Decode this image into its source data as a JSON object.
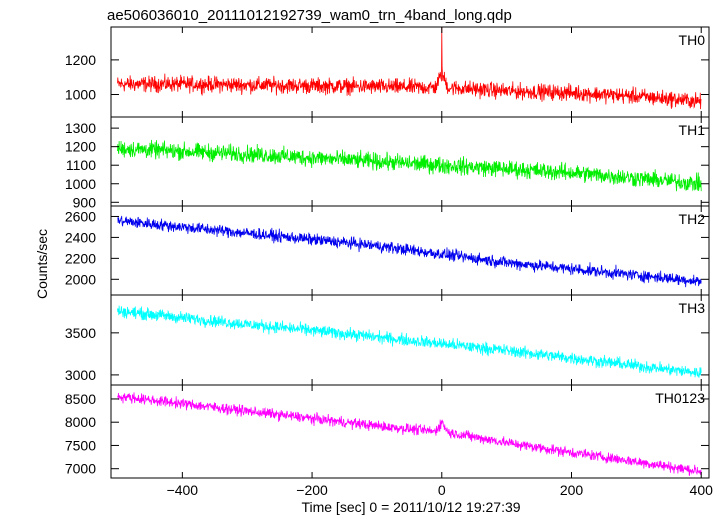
{
  "chart_data": {
    "type": "line",
    "title": "ae506036010_20111012192739_wam0_trn_4band_long.qdp",
    "xlabel": "Time [sec] 0 = 2011/10/12 19:27:39",
    "ylabel": "Counts/sec",
    "xlim": [
      -510,
      412
    ],
    "x_ticks": [
      -400,
      -200,
      0,
      200,
      400
    ],
    "x_tick_labels": [
      "−400",
      "−200",
      "0",
      "200",
      "400"
    ],
    "grid": false,
    "panels": [
      {
        "name": "TH0",
        "color": "#ff0000",
        "ylim": [
          870,
          1390
        ],
        "y_ticks": [
          1000,
          1200
        ],
        "x": [
          -500,
          -400,
          -300,
          -200,
          -100,
          -10,
          0,
          10,
          100,
          200,
          300,
          400
        ],
        "values": [
          1060,
          1060,
          1055,
          1050,
          1045,
          1040,
          1120,
          1040,
          1020,
          1010,
          990,
          960
        ],
        "noise": 45,
        "spike": {
          "x": 0,
          "value": 1390
        }
      },
      {
        "name": "TH1",
        "color": "#00ee00",
        "ylim": [
          880,
          1360
        ],
        "y_ticks": [
          900,
          1000,
          1100,
          1200,
          1300
        ],
        "x": [
          -500,
          -400,
          -300,
          -200,
          -100,
          0,
          100,
          200,
          300,
          400
        ],
        "values": [
          1190,
          1175,
          1160,
          1140,
          1120,
          1100,
          1080,
          1060,
          1030,
          1000
        ],
        "noise": 45
      },
      {
        "name": "TH2",
        "color": "#0000ee",
        "ylim": [
          1850,
          2700
        ],
        "y_ticks": [
          2000,
          2200,
          2400,
          2600
        ],
        "x": [
          -500,
          -400,
          -300,
          -200,
          -100,
          0,
          100,
          200,
          300,
          400
        ],
        "values": [
          2560,
          2500,
          2440,
          2380,
          2320,
          2240,
          2160,
          2100,
          2040,
          1980
        ],
        "noise": 55
      },
      {
        "name": "TH3",
        "color": "#00ffff",
        "ylim": [
          2880,
          3950
        ],
        "y_ticks": [
          3000,
          3500
        ],
        "x": [
          -500,
          -400,
          -300,
          -200,
          -100,
          0,
          100,
          200,
          300,
          400
        ],
        "values": [
          3760,
          3680,
          3600,
          3530,
          3450,
          3370,
          3290,
          3200,
          3110,
          3020
        ],
        "noise": 70
      },
      {
        "name": "TH0123",
        "color": "#ff00ff",
        "ylim": [
          6800,
          8800
        ],
        "y_ticks": [
          7000,
          7500,
          8000,
          8500
        ],
        "x": [
          -500,
          -400,
          -300,
          -200,
          -100,
          -10,
          0,
          10,
          100,
          200,
          300,
          400
        ],
        "values": [
          8560,
          8400,
          8240,
          8080,
          7920,
          7800,
          8000,
          7780,
          7560,
          7350,
          7150,
          6940
        ],
        "noise": 110
      }
    ]
  }
}
